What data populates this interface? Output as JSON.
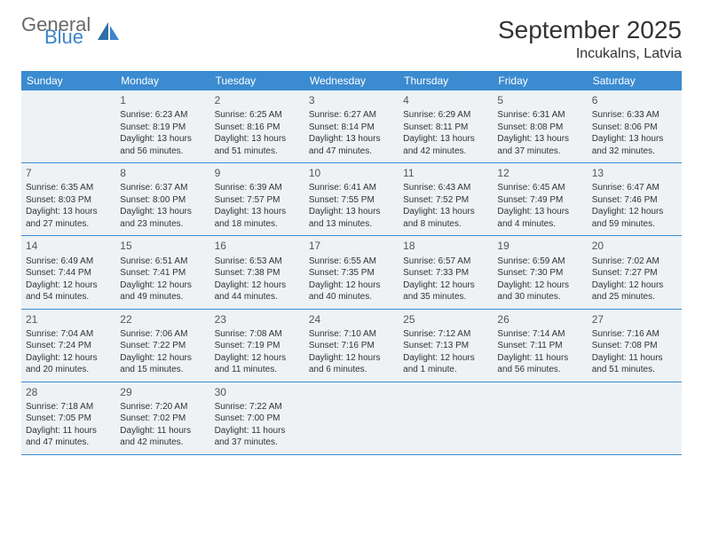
{
  "brand": {
    "part1": "General",
    "part2": "Blue"
  },
  "title": "September 2025",
  "location": "Incukalns, Latvia",
  "colors": {
    "header_bg": "#3b8bd0",
    "header_text": "#ffffff",
    "cell_bg": "#eef2f5",
    "border": "#3b8bd0",
    "text": "#333333",
    "brand_gray": "#6a6a6a",
    "brand_blue": "#3d85c6",
    "page_bg": "#ffffff"
  },
  "typography": {
    "month_title_fontsize": 28,
    "location_fontsize": 16,
    "weekday_fontsize": 12,
    "daynum_fontsize": 12,
    "body_fontsize": 10
  },
  "weekdays": [
    "Sunday",
    "Monday",
    "Tuesday",
    "Wednesday",
    "Thursday",
    "Friday",
    "Saturday"
  ],
  "weeks": [
    [
      null,
      {
        "n": "1",
        "sunrise": "Sunrise: 6:23 AM",
        "sunset": "Sunset: 8:19 PM",
        "daylight": "Daylight: 13 hours and 56 minutes."
      },
      {
        "n": "2",
        "sunrise": "Sunrise: 6:25 AM",
        "sunset": "Sunset: 8:16 PM",
        "daylight": "Daylight: 13 hours and 51 minutes."
      },
      {
        "n": "3",
        "sunrise": "Sunrise: 6:27 AM",
        "sunset": "Sunset: 8:14 PM",
        "daylight": "Daylight: 13 hours and 47 minutes."
      },
      {
        "n": "4",
        "sunrise": "Sunrise: 6:29 AM",
        "sunset": "Sunset: 8:11 PM",
        "daylight": "Daylight: 13 hours and 42 minutes."
      },
      {
        "n": "5",
        "sunrise": "Sunrise: 6:31 AM",
        "sunset": "Sunset: 8:08 PM",
        "daylight": "Daylight: 13 hours and 37 minutes."
      },
      {
        "n": "6",
        "sunrise": "Sunrise: 6:33 AM",
        "sunset": "Sunset: 8:06 PM",
        "daylight": "Daylight: 13 hours and 32 minutes."
      }
    ],
    [
      {
        "n": "7",
        "sunrise": "Sunrise: 6:35 AM",
        "sunset": "Sunset: 8:03 PM",
        "daylight": "Daylight: 13 hours and 27 minutes."
      },
      {
        "n": "8",
        "sunrise": "Sunrise: 6:37 AM",
        "sunset": "Sunset: 8:00 PM",
        "daylight": "Daylight: 13 hours and 23 minutes."
      },
      {
        "n": "9",
        "sunrise": "Sunrise: 6:39 AM",
        "sunset": "Sunset: 7:57 PM",
        "daylight": "Daylight: 13 hours and 18 minutes."
      },
      {
        "n": "10",
        "sunrise": "Sunrise: 6:41 AM",
        "sunset": "Sunset: 7:55 PM",
        "daylight": "Daylight: 13 hours and 13 minutes."
      },
      {
        "n": "11",
        "sunrise": "Sunrise: 6:43 AM",
        "sunset": "Sunset: 7:52 PM",
        "daylight": "Daylight: 13 hours and 8 minutes."
      },
      {
        "n": "12",
        "sunrise": "Sunrise: 6:45 AM",
        "sunset": "Sunset: 7:49 PM",
        "daylight": "Daylight: 13 hours and 4 minutes."
      },
      {
        "n": "13",
        "sunrise": "Sunrise: 6:47 AM",
        "sunset": "Sunset: 7:46 PM",
        "daylight": "Daylight: 12 hours and 59 minutes."
      }
    ],
    [
      {
        "n": "14",
        "sunrise": "Sunrise: 6:49 AM",
        "sunset": "Sunset: 7:44 PM",
        "daylight": "Daylight: 12 hours and 54 minutes."
      },
      {
        "n": "15",
        "sunrise": "Sunrise: 6:51 AM",
        "sunset": "Sunset: 7:41 PM",
        "daylight": "Daylight: 12 hours and 49 minutes."
      },
      {
        "n": "16",
        "sunrise": "Sunrise: 6:53 AM",
        "sunset": "Sunset: 7:38 PM",
        "daylight": "Daylight: 12 hours and 44 minutes."
      },
      {
        "n": "17",
        "sunrise": "Sunrise: 6:55 AM",
        "sunset": "Sunset: 7:35 PM",
        "daylight": "Daylight: 12 hours and 40 minutes."
      },
      {
        "n": "18",
        "sunrise": "Sunrise: 6:57 AM",
        "sunset": "Sunset: 7:33 PM",
        "daylight": "Daylight: 12 hours and 35 minutes."
      },
      {
        "n": "19",
        "sunrise": "Sunrise: 6:59 AM",
        "sunset": "Sunset: 7:30 PM",
        "daylight": "Daylight: 12 hours and 30 minutes."
      },
      {
        "n": "20",
        "sunrise": "Sunrise: 7:02 AM",
        "sunset": "Sunset: 7:27 PM",
        "daylight": "Daylight: 12 hours and 25 minutes."
      }
    ],
    [
      {
        "n": "21",
        "sunrise": "Sunrise: 7:04 AM",
        "sunset": "Sunset: 7:24 PM",
        "daylight": "Daylight: 12 hours and 20 minutes."
      },
      {
        "n": "22",
        "sunrise": "Sunrise: 7:06 AM",
        "sunset": "Sunset: 7:22 PM",
        "daylight": "Daylight: 12 hours and 15 minutes."
      },
      {
        "n": "23",
        "sunrise": "Sunrise: 7:08 AM",
        "sunset": "Sunset: 7:19 PM",
        "daylight": "Daylight: 12 hours and 11 minutes."
      },
      {
        "n": "24",
        "sunrise": "Sunrise: 7:10 AM",
        "sunset": "Sunset: 7:16 PM",
        "daylight": "Daylight: 12 hours and 6 minutes."
      },
      {
        "n": "25",
        "sunrise": "Sunrise: 7:12 AM",
        "sunset": "Sunset: 7:13 PM",
        "daylight": "Daylight: 12 hours and 1 minute."
      },
      {
        "n": "26",
        "sunrise": "Sunrise: 7:14 AM",
        "sunset": "Sunset: 7:11 PM",
        "daylight": "Daylight: 11 hours and 56 minutes."
      },
      {
        "n": "27",
        "sunrise": "Sunrise: 7:16 AM",
        "sunset": "Sunset: 7:08 PM",
        "daylight": "Daylight: 11 hours and 51 minutes."
      }
    ],
    [
      {
        "n": "28",
        "sunrise": "Sunrise: 7:18 AM",
        "sunset": "Sunset: 7:05 PM",
        "daylight": "Daylight: 11 hours and 47 minutes."
      },
      {
        "n": "29",
        "sunrise": "Sunrise: 7:20 AM",
        "sunset": "Sunset: 7:02 PM",
        "daylight": "Daylight: 11 hours and 42 minutes."
      },
      {
        "n": "30",
        "sunrise": "Sunrise: 7:22 AM",
        "sunset": "Sunset: 7:00 PM",
        "daylight": "Daylight: 11 hours and 37 minutes."
      },
      null,
      null,
      null,
      null
    ]
  ]
}
